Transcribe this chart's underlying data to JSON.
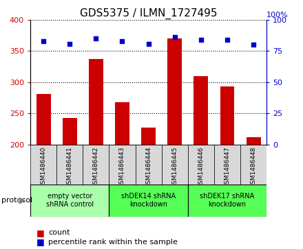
{
  "title": "GDS5375 / ILMN_1727495",
  "samples": [
    "GSM1486440",
    "GSM1486441",
    "GSM1486442",
    "GSM1486443",
    "GSM1486444",
    "GSM1486445",
    "GSM1486446",
    "GSM1486447",
    "GSM1486448"
  ],
  "bar_values": [
    281,
    243,
    337,
    268,
    227,
    370,
    310,
    293,
    212
  ],
  "scatter_values": [
    83,
    81,
    85,
    83,
    81,
    86,
    84,
    84,
    80
  ],
  "ylim_left": [
    200,
    400
  ],
  "ylim_right": [
    0,
    100
  ],
  "yticks_left": [
    200,
    250,
    300,
    350,
    400
  ],
  "yticks_right": [
    0,
    25,
    50,
    75,
    100
  ],
  "bar_color": "#cc0000",
  "scatter_color": "#0000cc",
  "groups": [
    {
      "label": "empty vector\nshRNA control",
      "start": 0,
      "end": 3,
      "color": "#aaffaa"
    },
    {
      "label": "shDEK14 shRNA\nknockdown",
      "start": 3,
      "end": 6,
      "color": "#55ff55"
    },
    {
      "label": "shDEK17 shRNA\nknockdown",
      "start": 6,
      "end": 9,
      "color": "#55ff55"
    }
  ],
  "protocol_label": "protocol",
  "legend_count": "count",
  "legend_percentile": "percentile rank within the sample",
  "tick_bg_color": "#d8d8d8",
  "title_fontsize": 11,
  "bar_width": 0.55
}
